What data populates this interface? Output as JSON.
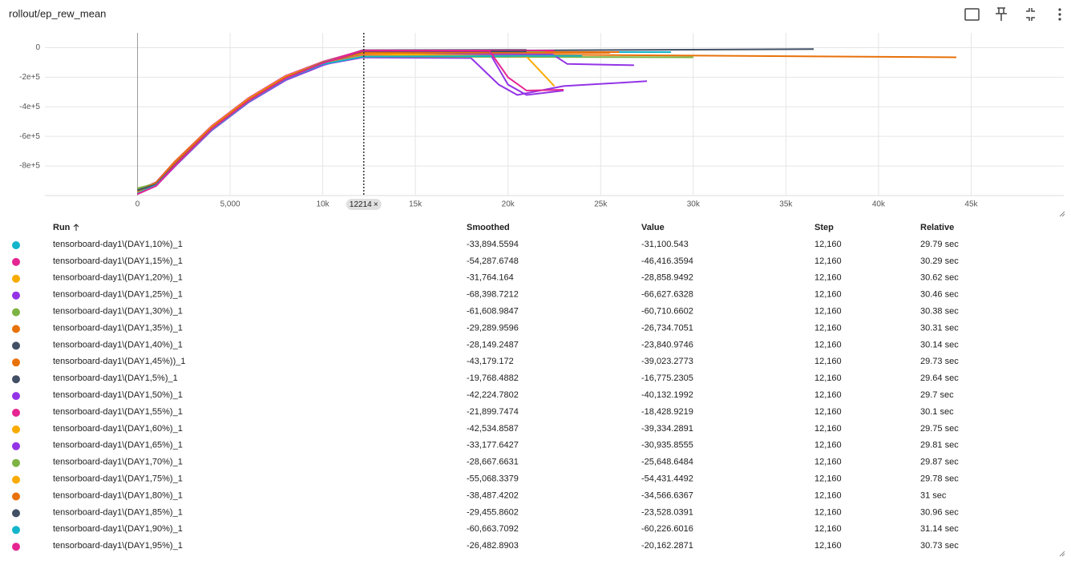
{
  "header": {
    "title": "rollout/ep_rew_mean"
  },
  "chart_data": {
    "type": "line",
    "xlim": [
      -5000,
      50000
    ],
    "ylim": [
      -1000000,
      100000
    ],
    "xticks": [
      0,
      {
        "value": 5000,
        "label": "5,000"
      },
      {
        "value": 10000,
        "label": "10k"
      },
      {
        "value": 15000,
        "label": "15k"
      },
      {
        "value": 20000,
        "label": "20k"
      },
      {
        "value": 25000,
        "label": "25k"
      },
      {
        "value": 30000,
        "label": "30k"
      },
      {
        "value": 35000,
        "label": "35k"
      },
      {
        "value": 40000,
        "label": "40k"
      },
      {
        "value": 45000,
        "label": "45k"
      }
    ],
    "yticks": [
      0,
      {
        "value": -200000,
        "label": "-2e+5"
      },
      {
        "value": -400000,
        "label": "-4e+5"
      },
      {
        "value": -600000,
        "label": "-6e+5"
      },
      {
        "value": -800000,
        "label": "-8e+5"
      }
    ],
    "grid": true,
    "cursor_step": 12214,
    "series": [
      {
        "name": "tensorboard-day1\\(DAY1,10%)_1",
        "color": "#12b5cb",
        "x": [
          0,
          1000,
          2000,
          4000,
          6000,
          8000,
          10000,
          12160,
          20000,
          28800
        ],
        "values": [
          -960000,
          -915000,
          -780000,
          -540000,
          -350000,
          -200000,
          -100000,
          -31100,
          -30000,
          -30000
        ]
      },
      {
        "name": "tensorboard-day1\\(DAY1,15%)_1",
        "color": "#e52592",
        "x": [
          0,
          1000,
          2000,
          4000,
          6000,
          8000,
          10000,
          12160,
          17000,
          21000
        ],
        "values": [
          -990000,
          -930000,
          -800000,
          -550000,
          -360000,
          -210000,
          -110000,
          -46400,
          -48000,
          -50000
        ]
      },
      {
        "name": "tensorboard-day1\\(DAY1,20%)_1",
        "color": "#f9ab00",
        "x": [
          0,
          1000,
          2000,
          4000,
          6000,
          8000,
          10000,
          12160,
          20000
        ],
        "values": [
          -970000,
          -910000,
          -770000,
          -530000,
          -345000,
          -195000,
          -95000,
          -28900,
          -25000
        ]
      },
      {
        "name": "tensorboard-day1\\(DAY1,25%)_1",
        "color": "#9334e6",
        "x": [
          0,
          1000,
          2000,
          4000,
          6000,
          8000,
          10000,
          12160,
          18000,
          19500,
          20500,
          23000,
          27500
        ],
        "values": [
          -985000,
          -930000,
          -800000,
          -555000,
          -365000,
          -215000,
          -115000,
          -66600,
          -70000,
          -250000,
          -320000,
          -260000,
          -227000
        ]
      },
      {
        "name": "tensorboard-day1\\(DAY1,30%)_1",
        "color": "#7cb342",
        "x": [
          0,
          1000,
          2000,
          4000,
          6000,
          8000,
          10000,
          12160,
          30000
        ],
        "values": [
          -950000,
          -920000,
          -790000,
          -545000,
          -355000,
          -205000,
          -110000,
          -60700,
          -65000
        ]
      },
      {
        "name": "tensorboard-day1\\(DAY1,35%)_1",
        "color": "#e8710a",
        "x": [
          0,
          1000,
          2000,
          4000,
          6000,
          8000,
          10000,
          12160,
          26000
        ],
        "values": [
          -975000,
          -920000,
          -785000,
          -540000,
          -350000,
          -200000,
          -100000,
          -26700,
          -30000
        ]
      },
      {
        "name": "tensorboard-day1\\(DAY1,40%)_1",
        "color": "#425066",
        "x": [
          0,
          1000,
          2000,
          4000,
          6000,
          8000,
          10000,
          12160,
          36500
        ],
        "values": [
          -960000,
          -925000,
          -795000,
          -550000,
          -360000,
          -210000,
          -105000,
          -23800,
          -10000
        ]
      },
      {
        "name": "tensorboard-day1\\(DAY1,45%))_1",
        "color": "#e8710a",
        "x": [
          0,
          1000,
          2000,
          4000,
          6000,
          8000,
          10000,
          12160,
          44200
        ],
        "values": [
          -980000,
          -925000,
          -790000,
          -545000,
          -355000,
          -205000,
          -108000,
          -39000,
          -65000
        ]
      },
      {
        "name": "tensorboard-day1\\(DAY1,5%)_1",
        "color": "#425066",
        "x": [
          0,
          1000,
          2000,
          4000,
          6000,
          8000,
          10000,
          12160,
          21000
        ],
        "values": [
          -970000,
          -920000,
          -790000,
          -545000,
          -355000,
          -200000,
          -100000,
          -16800,
          -15000
        ]
      },
      {
        "name": "tensorboard-day1\\(DAY1,50%)_1",
        "color": "#9334e6",
        "x": [
          0,
          1000,
          2000,
          4000,
          6000,
          8000,
          10000,
          12160,
          22400,
          23200,
          26800
        ],
        "values": [
          -990000,
          -935000,
          -805000,
          -560000,
          -370000,
          -220000,
          -120000,
          -40100,
          -45000,
          -110000,
          -119000
        ]
      },
      {
        "name": "tensorboard-day1\\(DAY1,55%)_1",
        "color": "#e52592",
        "x": [
          0,
          1000,
          2000,
          4000,
          6000,
          8000,
          10000,
          12160,
          22500
        ],
        "values": [
          -965000,
          -910000,
          -775000,
          -530000,
          -340000,
          -190000,
          -95000,
          -18400,
          -20000
        ]
      },
      {
        "name": "tensorboard-day1\\(DAY1,60%)_1",
        "color": "#f9ab00",
        "x": [
          0,
          1000,
          2000,
          4000,
          6000,
          8000,
          10000,
          12160,
          21000,
          22500
        ],
        "values": [
          -975000,
          -915000,
          -780000,
          -535000,
          -345000,
          -195000,
          -100000,
          -39300,
          -60000,
          -260000
        ]
      },
      {
        "name": "tensorboard-day1\\(DAY1,65%)_1",
        "color": "#9334e6",
        "x": [
          0,
          1000,
          2000,
          4000,
          6000,
          8000,
          10000,
          12160,
          19000,
          20000,
          21000,
          23000
        ],
        "values": [
          -985000,
          -925000,
          -790000,
          -545000,
          -355000,
          -205000,
          -110000,
          -30900,
          -35000,
          -250000,
          -320000,
          -290000
        ]
      },
      {
        "name": "tensorboard-day1\\(DAY1,70%)_1",
        "color": "#7cb342",
        "x": [
          0,
          1000,
          2000,
          4000,
          6000,
          8000,
          10000,
          12160,
          22000
        ],
        "values": [
          -955000,
          -915000,
          -785000,
          -540000,
          -350000,
          -200000,
          -100000,
          -25600,
          -30000
        ]
      },
      {
        "name": "tensorboard-day1\\(DAY1,75%)_1",
        "color": "#f9ab00",
        "x": [
          0,
          1000,
          2000,
          4000,
          6000,
          8000,
          10000,
          12160,
          23000
        ],
        "values": [
          -980000,
          -920000,
          -785000,
          -545000,
          -355000,
          -205000,
          -110000,
          -54400,
          -55000
        ]
      },
      {
        "name": "tensorboard-day1\\(DAY1,80%)_1",
        "color": "#e8710a",
        "x": [
          0,
          1000,
          2000,
          4000,
          6000,
          8000,
          10000,
          12160,
          25500
        ],
        "values": [
          -970000,
          -915000,
          -780000,
          -540000,
          -350000,
          -200000,
          -102000,
          -34600,
          -35000
        ]
      },
      {
        "name": "tensorboard-day1\\(DAY1,85%)_1",
        "color": "#425066",
        "x": [
          0,
          1000,
          2000,
          4000,
          6000,
          8000,
          10000,
          12160,
          21000
        ],
        "values": [
          -965000,
          -925000,
          -795000,
          -550000,
          -360000,
          -208000,
          -104000,
          -23500,
          -25000
        ]
      },
      {
        "name": "tensorboard-day1\\(DAY1,90%)_1",
        "color": "#12b5cb",
        "x": [
          0,
          1000,
          2000,
          4000,
          6000,
          8000,
          10000,
          12160,
          24000
        ],
        "values": [
          -985000,
          -930000,
          -800000,
          -555000,
          -365000,
          -212000,
          -112000,
          -60200,
          -55000
        ]
      },
      {
        "name": "tensorboard-day1\\(DAY1,95%)_1",
        "color": "#e52592",
        "x": [
          0,
          1000,
          2000,
          4000,
          6000,
          8000,
          10000,
          12160,
          19000,
          20000,
          21000,
          23000
        ],
        "values": [
          -990000,
          -935000,
          -800000,
          -550000,
          -360000,
          -208000,
          -105000,
          -20200,
          -22000,
          -200000,
          -290000,
          -285000
        ]
      }
    ]
  },
  "table": {
    "columns": [
      "Run",
      "Smoothed",
      "Value",
      "Step",
      "Relative"
    ],
    "rows": [
      [
        "-33,894.5594",
        "-31,100.543",
        "12,160",
        "29.79 sec"
      ],
      [
        "-54,287.6748",
        "-46,416.3594",
        "12,160",
        "30.29 sec"
      ],
      [
        "-31,764.164",
        "-28,858.9492",
        "12,160",
        "30.62 sec"
      ],
      [
        "-68,398.7212",
        "-66,627.6328",
        "12,160",
        "30.46 sec"
      ],
      [
        "-61,608.9847",
        "-60,710.6602",
        "12,160",
        "30.38 sec"
      ],
      [
        "-29,289.9596",
        "-26,734.7051",
        "12,160",
        "30.31 sec"
      ],
      [
        "-28,149.2487",
        "-23,840.9746",
        "12,160",
        "30.14 sec"
      ],
      [
        "-43,179.172",
        "-39,023.2773",
        "12,160",
        "29.73 sec"
      ],
      [
        "-19,768.4882",
        "-16,775.2305",
        "12,160",
        "29.64 sec"
      ],
      [
        "-42,224.7802",
        "-40,132.1992",
        "12,160",
        "29.7 sec"
      ],
      [
        "-21,899.7474",
        "-18,428.9219",
        "12,160",
        "30.1 sec"
      ],
      [
        "-42,534.8587",
        "-39,334.2891",
        "12,160",
        "29.75 sec"
      ],
      [
        "-33,177.6427",
        "-30,935.8555",
        "12,160",
        "29.81 sec"
      ],
      [
        "-28,667.6631",
        "-25,648.6484",
        "12,160",
        "29.87 sec"
      ],
      [
        "-55,068.3379",
        "-54,431.4492",
        "12,160",
        "29.78 sec"
      ],
      [
        "-38,487.4202",
        "-34,566.6367",
        "12,160",
        "31 sec"
      ],
      [
        "-29,455.8602",
        "-23,528.0391",
        "12,160",
        "30.96 sec"
      ],
      [
        "-60,663.7092",
        "-60,226.6016",
        "12,160",
        "31.14 sec"
      ],
      [
        "-26,482.8903",
        "-20,162.2871",
        "12,160",
        "30.73 sec"
      ]
    ]
  }
}
